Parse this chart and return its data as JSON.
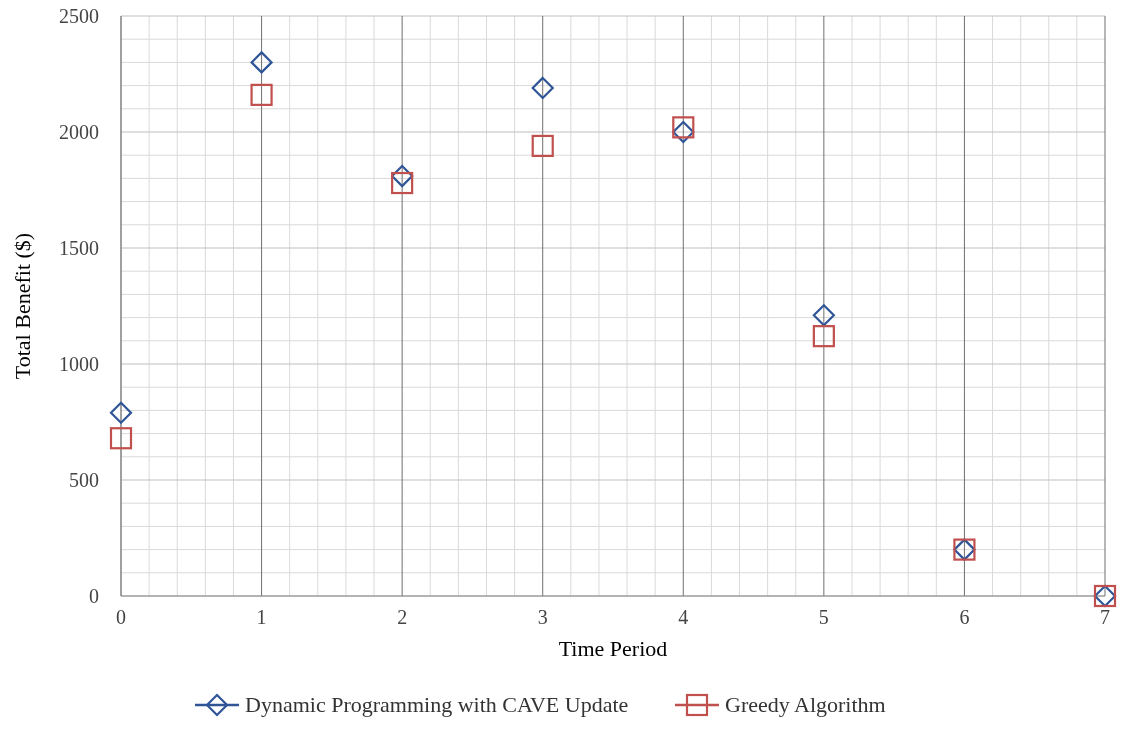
{
  "chart_data": {
    "type": "scatter",
    "xlabel": "Time  Period",
    "ylabel": "Total  Benefit ($)",
    "xlim": [
      0,
      7
    ],
    "xticks": [
      0,
      1,
      2,
      3,
      4,
      5,
      6,
      7
    ],
    "ylim": [
      0,
      2500
    ],
    "yticks": [
      0,
      500,
      1000,
      1500,
      2000,
      2500
    ],
    "grid": true,
    "legend": "bottom",
    "series": [
      {
        "name": "Dynamic Programming with CAVE Update",
        "color": "#2f5597",
        "marker": "diamond",
        "x": [
          0,
          1,
          2,
          3,
          4,
          5,
          6,
          7
        ],
        "values": [
          790,
          2300,
          1810,
          2190,
          2000,
          1210,
          200,
          0
        ]
      },
      {
        "name": "Greedy Algorithm",
        "color": "#c0504d",
        "marker": "square",
        "x": [
          0,
          1,
          2,
          3,
          4,
          5,
          6,
          7
        ],
        "values": [
          680,
          2160,
          1780,
          1940,
          2020,
          1120,
          200,
          0
        ]
      }
    ]
  }
}
